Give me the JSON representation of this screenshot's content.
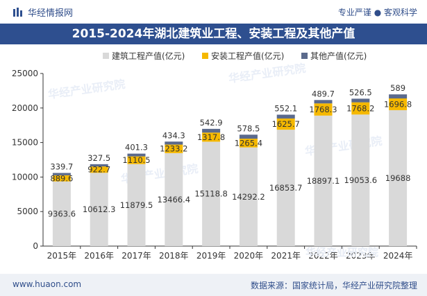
{
  "header": {
    "brand": "华经情报网",
    "tagline": "专业严谨 ● 客观科学"
  },
  "footer": {
    "website": "www.huaon.com",
    "source": "数据来源：国家统计局，华经产业研究院整理"
  },
  "watermark": "华经产业研究院",
  "colors": {
    "construction": "#d9d9d9",
    "installation": "#f5b800",
    "other": "#5b6a8c",
    "header_blue": "#2e4f8f"
  },
  "chart_data": {
    "type": "bar",
    "stacked": true,
    "title": "2015-2024年湖北建筑业工程、安装工程及其他产值",
    "categories": [
      "2015年",
      "2016年",
      "2017年",
      "2018年",
      "2019年",
      "2020年",
      "2021年",
      "2022年",
      "2023年",
      "2024年"
    ],
    "series": [
      {
        "name": "建筑工程产值(亿元)",
        "values": [
          9363.6,
          10612.3,
          11879.5,
          13466.4,
          15118.8,
          14292.2,
          16853.7,
          18897.1,
          19053.6,
          19688
        ]
      },
      {
        "name": "安装工程产值(亿元)",
        "values": [
          889.6,
          922.7,
          1110.5,
          1233.2,
          1317.8,
          1265.4,
          1625.7,
          1768.3,
          1768.2,
          1696.8
        ]
      },
      {
        "name": "其他产值(亿元)",
        "values": [
          339.7,
          327.5,
          401.3,
          434.3,
          542.9,
          578.5,
          552.1,
          489.7,
          526.5,
          589
        ]
      }
    ],
    "value_labels": {
      "construction": [
        "9363.6",
        "10612.3",
        "11879.5",
        "13466.4",
        "15118.8",
        "14292.2",
        "16853.7",
        "18897.1",
        "19053.6",
        "19688"
      ],
      "installation": [
        "889.6",
        "922.7",
        "1110.5",
        "1233.2",
        "1317.8",
        "1265.4",
        "1625.7",
        "1768.3",
        "1768.2",
        "1696.8"
      ],
      "other": [
        "339.7",
        "327.5",
        "401.3",
        "434.3",
        "542.9",
        "578.5",
        "552.1",
        "489.7",
        "526.5",
        "589"
      ]
    },
    "yticks": [
      "0",
      "5000",
      "10000",
      "15000",
      "20000",
      "25000"
    ],
    "ylim": [
      0,
      25000
    ],
    "legend_position": "top-center",
    "grid": false
  }
}
